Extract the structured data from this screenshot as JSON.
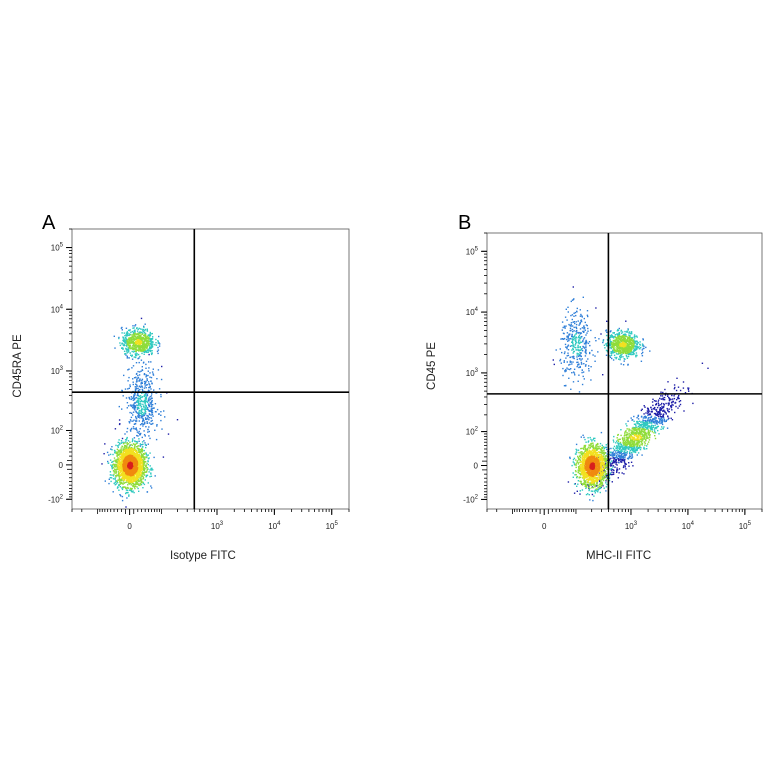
{
  "chart_data": [
    {
      "type": "scatter",
      "panel_label": "A",
      "xlabel": "Isotype FITC",
      "ylabel": "CD45RA PE",
      "x_scale": "biexponential",
      "y_scale": "biexponential",
      "xlim": [
        -300,
        200000
      ],
      "ylim": [
        -150,
        200000
      ],
      "x_ticks": [
        {
          "base": "0",
          "exp": ""
        },
        {
          "base": "10",
          "exp": "3"
        },
        {
          "base": "10",
          "exp": "4"
        },
        {
          "base": "10",
          "exp": "5"
        }
      ],
      "y_ticks": [
        {
          "base": "-10",
          "exp": "2"
        },
        {
          "base": "0",
          "exp": ""
        },
        {
          "base": "10",
          "exp": "2"
        },
        {
          "base": "10",
          "exp": "3"
        },
        {
          "base": "10",
          "exp": "4"
        },
        {
          "base": "10",
          "exp": "5"
        }
      ],
      "quadrant_gate": {
        "x": 400,
        "y": 450
      },
      "populations": [
        {
          "x_center": 0,
          "y_center": 0,
          "density": "high",
          "count": 2200
        },
        {
          "x_center": 20,
          "y_center": 3000,
          "density": "medium",
          "count": 650
        },
        {
          "x_center": 30,
          "y_center": 300,
          "density": "low",
          "count": 500
        }
      ],
      "colormap": [
        "#1f1fa8",
        "#2f7fd8",
        "#2fc9c0",
        "#8fdc3a",
        "#f2e020",
        "#f08a10",
        "#d81e1e"
      ]
    },
    {
      "type": "scatter",
      "panel_label": "B",
      "xlabel": "MHC-II FITC",
      "ylabel": "CD45 PE",
      "x_scale": "biexponential",
      "y_scale": "biexponential",
      "xlim": [
        -300,
        200000
      ],
      "ylim": [
        -150,
        200000
      ],
      "x_ticks": [
        {
          "base": "0",
          "exp": ""
        },
        {
          "base": "10",
          "exp": "3"
        },
        {
          "base": "10",
          "exp": "4"
        },
        {
          "base": "10",
          "exp": "5"
        }
      ],
      "y_ticks": [
        {
          "base": "-10",
          "exp": "2"
        },
        {
          "base": "0",
          "exp": ""
        },
        {
          "base": "10",
          "exp": "2"
        },
        {
          "base": "10",
          "exp": "3"
        },
        {
          "base": "10",
          "exp": "4"
        },
        {
          "base": "10",
          "exp": "5"
        }
      ],
      "quadrant_gate": {
        "x": 400,
        "y": 450
      },
      "populations": [
        {
          "x_center": 200,
          "y_center": 0,
          "density": "high",
          "count": 1500
        },
        {
          "x_center": 1200,
          "y_center": 80,
          "density": "medium",
          "count": 1200
        },
        {
          "x_center": 700,
          "y_center": 3000,
          "density": "medium",
          "count": 700
        },
        {
          "x_center": 100,
          "y_center": 3000,
          "density": "low",
          "count": 350
        }
      ],
      "colormap": [
        "#1f1fa8",
        "#2f7fd8",
        "#2fc9c0",
        "#8fdc3a",
        "#f2e020",
        "#f08a10",
        "#d81e1e"
      ]
    }
  ]
}
